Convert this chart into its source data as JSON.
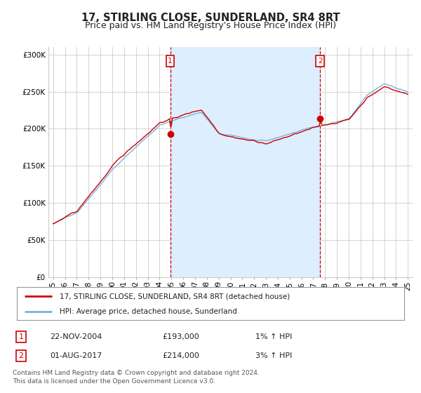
{
  "title": "17, STIRLING CLOSE, SUNDERLAND, SR4 8RT",
  "subtitle": "Price paid vs. HM Land Registry's House Price Index (HPI)",
  "title_fontsize": 10.5,
  "subtitle_fontsize": 9,
  "background_color": "#ffffff",
  "plot_bg_color": "#ffffff",
  "shade_color": "#ddeeff",
  "grid_color": "#cccccc",
  "hpi_color": "#7ab3d4",
  "house_color": "#cc0000",
  "annotation_color": "#cc0000",
  "ylim": [
    0,
    310000
  ],
  "yticks": [
    0,
    50000,
    100000,
    150000,
    200000,
    250000,
    300000
  ],
  "ytick_labels": [
    "£0",
    "£50K",
    "£100K",
    "£150K",
    "£200K",
    "£250K",
    "£300K"
  ],
  "sale1_date": "22-NOV-2004",
  "sale1_price": 193000,
  "sale1_hpi_text": "1%",
  "sale2_date": "01-AUG-2017",
  "sale2_price": 214000,
  "sale2_hpi_text": "3%",
  "legend_label1": "17, STIRLING CLOSE, SUNDERLAND, SR4 8RT (detached house)",
  "legend_label2": "HPI: Average price, detached house, Sunderland",
  "footer": "Contains HM Land Registry data © Crown copyright and database right 2024.\nThis data is licensed under the Open Government Licence v3.0.",
  "marker1_x": 2004.9,
  "marker2_x": 2017.58,
  "xtick_labels": [
    "95",
    "96",
    "97",
    "98",
    "99",
    "00",
    "01",
    "02",
    "03",
    "04",
    "05",
    "06",
    "07",
    "08",
    "09",
    "10",
    "11",
    "12",
    "13",
    "14",
    "15",
    "16",
    "17",
    "18",
    "19",
    "20",
    "21",
    "22",
    "23",
    "24",
    "25"
  ],
  "xtick_years": [
    1995,
    1996,
    1997,
    1998,
    1999,
    2000,
    2001,
    2002,
    2003,
    2004,
    2005,
    2006,
    2007,
    2008,
    2009,
    2010,
    2011,
    2012,
    2013,
    2014,
    2015,
    2016,
    2017,
    2018,
    2019,
    2020,
    2021,
    2022,
    2023,
    2024,
    2025
  ]
}
